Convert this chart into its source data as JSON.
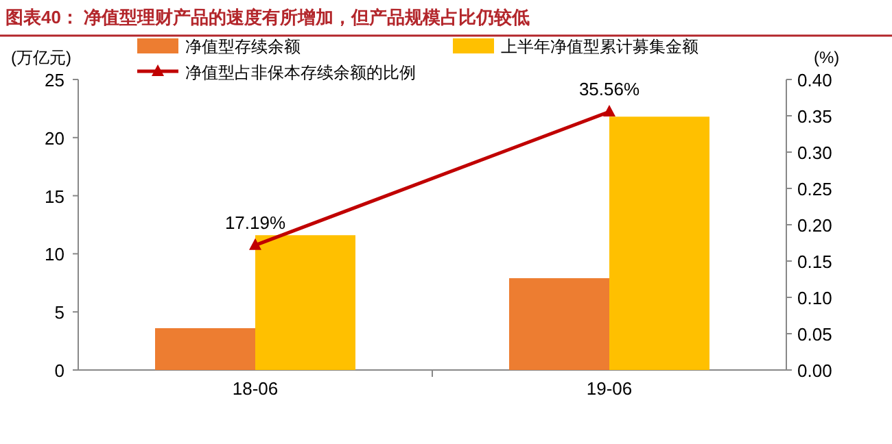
{
  "chart_data": {
    "type": "bar",
    "title": "图表40：  净值型理财产品的速度有所增加，但产品规模占比仍较低",
    "ylabel": "(万亿元)",
    "y2label": "(%)",
    "categories": [
      "18-06",
      "19-06"
    ],
    "series": [
      {
        "name": "净值型存续余额",
        "color": "#ed7d31",
        "values": [
          3.6,
          7.9
        ]
      },
      {
        "name": "上半年净值型累计募集金额",
        "color": "#ffc000",
        "values": [
          11.6,
          21.8
        ]
      },
      {
        "name": "净值型占非保本存续余额的比例",
        "type": "line",
        "axis": "y2",
        "color": "#c00000",
        "marker": "triangle",
        "values": [
          0.1719,
          0.3556
        ],
        "value_labels": [
          "17.19%",
          "35.56%"
        ]
      }
    ],
    "ylim": [
      0,
      25
    ],
    "yticks": [
      0,
      5,
      10,
      15,
      20,
      25
    ],
    "y2lim": [
      0,
      0.4
    ],
    "y2ticks": [
      {
        "value": 0,
        "label": "0.00"
      },
      {
        "value": 0.05,
        "label": "0.05"
      },
      {
        "value": 0.1,
        "label": "0.10"
      },
      {
        "value": 0.15,
        "label": "0.15"
      },
      {
        "value": 0.2,
        "label": "0.20"
      },
      {
        "value": 0.25,
        "label": "0.25"
      },
      {
        "value": 0.3,
        "label": "0.30"
      },
      {
        "value": 0.35,
        "label": "0.35"
      },
      {
        "value": 0.4,
        "label": "0.40"
      }
    ],
    "legend": "top",
    "grid": false
  }
}
